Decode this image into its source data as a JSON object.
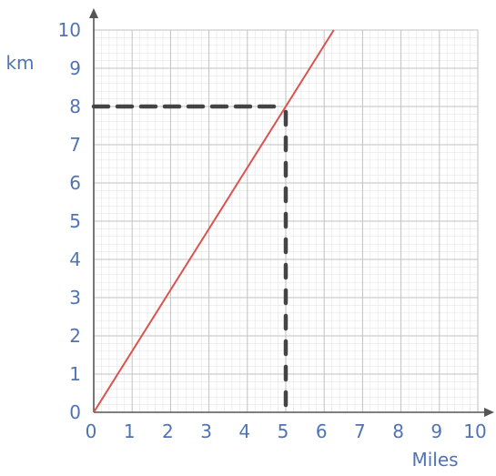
{
  "chart_data": {
    "type": "line",
    "title": "",
    "xlabel": "Miles",
    "ylabel": "km",
    "xlim": [
      0,
      10
    ],
    "ylim": [
      0,
      10
    ],
    "grid": true,
    "x_ticks": [
      "0",
      "1",
      "2",
      "3",
      "4",
      "5",
      "6",
      "7",
      "8",
      "9",
      "10"
    ],
    "y_ticks": [
      "0",
      "1",
      "2",
      "3",
      "4",
      "5",
      "6",
      "7",
      "8",
      "9",
      "10"
    ],
    "series": [
      {
        "x": [
          0,
          6.25
        ],
        "y": [
          0,
          10
        ]
      }
    ],
    "annotations": [
      {
        "type": "dashed-guide",
        "x": 5,
        "y": 8
      }
    ],
    "colors": {
      "line": "#d9534f",
      "guide": "#444444",
      "labels": "#4f73b3",
      "axes": "#555555",
      "grid_major": "#c2c2c2",
      "grid_minor": "#e4e4e4"
    }
  }
}
